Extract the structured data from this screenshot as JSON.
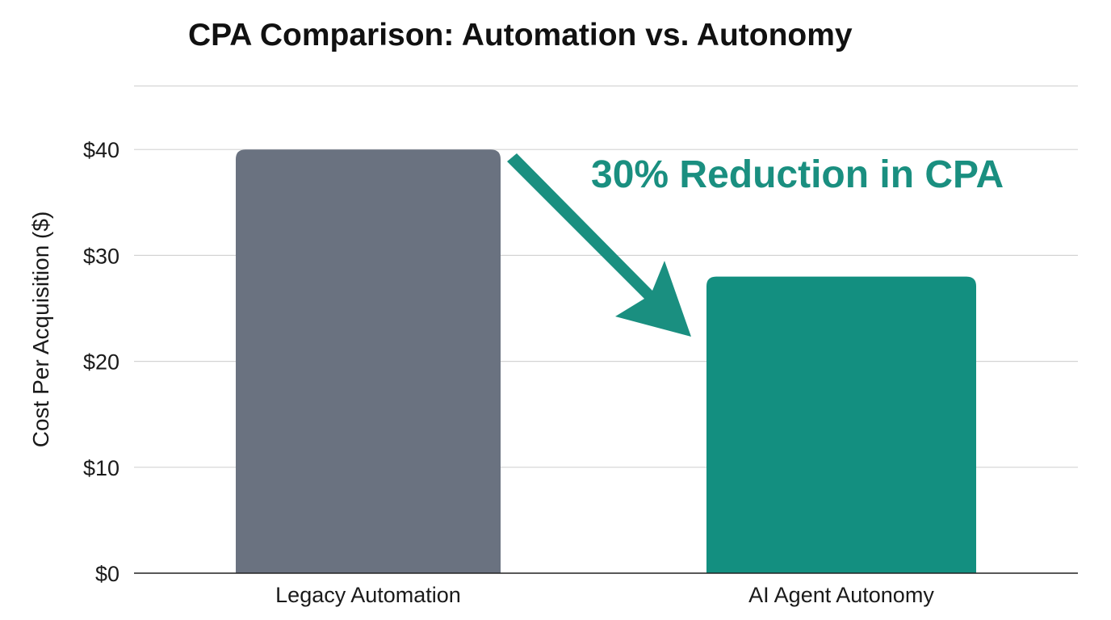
{
  "chart_data": {
    "type": "bar",
    "title": "CPA Comparison: Automation vs. Autonomy",
    "xlabel": "",
    "ylabel": "Cost Per Acquisition ($)",
    "categories": [
      "Legacy Automation",
      "AI Agent Autonomy"
    ],
    "values": [
      40,
      28
    ],
    "ylim": [
      0,
      46
    ],
    "yticks": [
      0,
      10,
      20,
      30,
      40
    ],
    "ytick_labels": [
      "$0",
      "$10",
      "$20",
      "$30",
      "$40"
    ],
    "grid": true,
    "legend": "none",
    "annotation": "30% Reduction in CPA",
    "colors": {
      "bars": [
        "#6a7280",
        "#138f80"
      ],
      "annotation": "#1a8f80",
      "arrow": "#1a8f80",
      "grid": "#d4d4d4",
      "axis": "#222222"
    }
  }
}
